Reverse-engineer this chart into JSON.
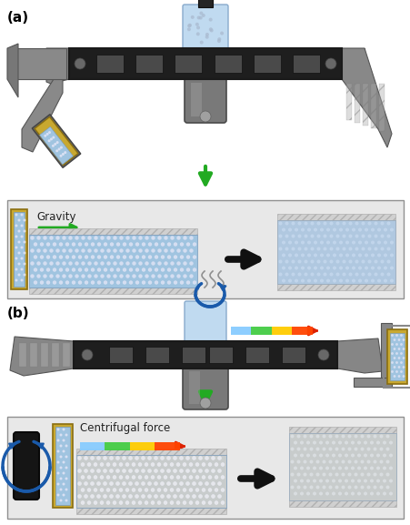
{
  "fig_width": 4.52,
  "fig_height": 5.77,
  "dpi": 100,
  "bg": "#ffffff",
  "label_a": "(a)",
  "label_b": "(b)",
  "gravity_text": "Gravity",
  "centrifugal_text": "Centrifugal force",
  "machine_dark": "#1e1e1e",
  "machine_mid": "#383838",
  "machine_slot": "#4a4a4a",
  "arm_gray": "#808080",
  "arm_dark": "#606060",
  "arm_light": "#a0a0a0",
  "cyl_gray": "#727272",
  "cyl_light": "#b0b0b0",
  "mold_gold": "#c8a830",
  "mold_dark": "#8a6e10",
  "liq_blue": "#a0c4e0",
  "liq_light": "#c0daf0",
  "particle_w": "#e8e8f8",
  "cryst_blue": "#b0c8e0",
  "cryst_gray": "#c8ccd0",
  "box_bg": "#e8e8e8",
  "box_border": "#909090",
  "green": "#22aa22",
  "black": "#101010",
  "blue_rot": "#1a5aaa",
  "hatchy": "#b0b0b0",
  "hatch_bg": "#d0d0d0",
  "wave_col": "#808080"
}
